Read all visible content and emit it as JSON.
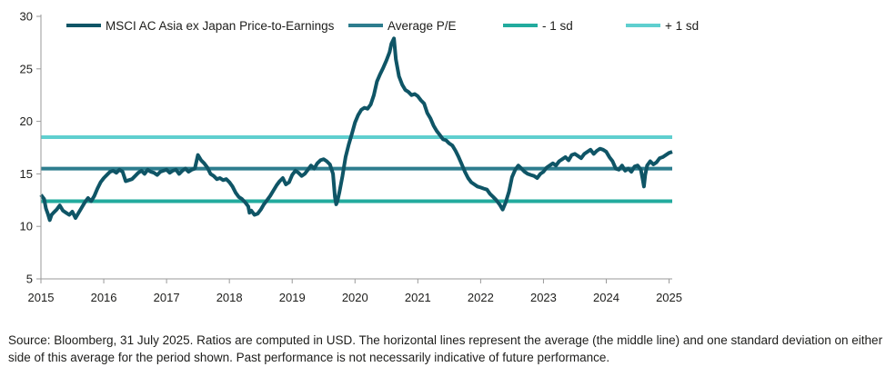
{
  "chart_data": {
    "type": "line",
    "x_ticks": [
      "2015",
      "2016",
      "2017",
      "2018",
      "2019",
      "2020",
      "2021",
      "2022",
      "2023",
      "2024",
      "2025"
    ],
    "y_ticks": [
      "5",
      "10",
      "15",
      "20",
      "25",
      "30"
    ],
    "xlim": [
      2015.0,
      2025.05
    ],
    "ylim": [
      5,
      30
    ],
    "legend_position": "top",
    "grid": false,
    "series": [
      {
        "name": "MSCI AC Asia ex Japan Price-to-Earnings",
        "color": "#0f5566",
        "points": [
          [
            2015.0,
            13.0
          ],
          [
            2015.05,
            12.6
          ],
          [
            2015.08,
            11.7
          ],
          [
            2015.11,
            11.2
          ],
          [
            2015.14,
            10.6
          ],
          [
            2015.17,
            11.1
          ],
          [
            2015.2,
            11.3
          ],
          [
            2015.25,
            11.6
          ],
          [
            2015.3,
            12.0
          ],
          [
            2015.35,
            11.5
          ],
          [
            2015.4,
            11.3
          ],
          [
            2015.45,
            11.1
          ],
          [
            2015.5,
            11.4
          ],
          [
            2015.55,
            10.8
          ],
          [
            2015.6,
            11.3
          ],
          [
            2015.65,
            11.8
          ],
          [
            2015.7,
            12.3
          ],
          [
            2015.75,
            12.7
          ],
          [
            2015.8,
            12.4
          ],
          [
            2015.85,
            12.9
          ],
          [
            2015.9,
            13.6
          ],
          [
            2015.95,
            14.2
          ],
          [
            2016.0,
            14.6
          ],
          [
            2016.05,
            14.9
          ],
          [
            2016.1,
            15.2
          ],
          [
            2016.15,
            15.3
          ],
          [
            2016.2,
            15.1
          ],
          [
            2016.25,
            15.4
          ],
          [
            2016.3,
            15.2
          ],
          [
            2016.35,
            14.3
          ],
          [
            2016.4,
            14.4
          ],
          [
            2016.45,
            14.5
          ],
          [
            2016.5,
            14.8
          ],
          [
            2016.55,
            15.1
          ],
          [
            2016.6,
            15.3
          ],
          [
            2016.65,
            15.0
          ],
          [
            2016.7,
            15.4
          ],
          [
            2016.75,
            15.2
          ],
          [
            2016.8,
            15.1
          ],
          [
            2016.85,
            14.9
          ],
          [
            2016.9,
            15.2
          ],
          [
            2016.95,
            15.3
          ],
          [
            2017.0,
            15.4
          ],
          [
            2017.05,
            15.1
          ],
          [
            2017.1,
            15.3
          ],
          [
            2017.15,
            15.4
          ],
          [
            2017.2,
            15.0
          ],
          [
            2017.25,
            15.3
          ],
          [
            2017.3,
            15.5
          ],
          [
            2017.35,
            15.2
          ],
          [
            2017.4,
            15.4
          ],
          [
            2017.45,
            15.5
          ],
          [
            2017.5,
            16.8
          ],
          [
            2017.55,
            16.3
          ],
          [
            2017.6,
            16.0
          ],
          [
            2017.65,
            15.6
          ],
          [
            2017.7,
            15.0
          ],
          [
            2017.75,
            14.8
          ],
          [
            2017.8,
            14.5
          ],
          [
            2017.85,
            14.6
          ],
          [
            2017.9,
            14.4
          ],
          [
            2017.95,
            14.5
          ],
          [
            2018.0,
            14.2
          ],
          [
            2018.05,
            13.8
          ],
          [
            2018.1,
            13.2
          ],
          [
            2018.15,
            12.8
          ],
          [
            2018.2,
            12.6
          ],
          [
            2018.25,
            12.3
          ],
          [
            2018.3,
            11.9
          ],
          [
            2018.32,
            11.3
          ],
          [
            2018.35,
            11.5
          ],
          [
            2018.4,
            11.1
          ],
          [
            2018.45,
            11.2
          ],
          [
            2018.5,
            11.6
          ],
          [
            2018.55,
            12.1
          ],
          [
            2018.6,
            12.5
          ],
          [
            2018.65,
            12.9
          ],
          [
            2018.7,
            13.4
          ],
          [
            2018.75,
            13.9
          ],
          [
            2018.8,
            14.3
          ],
          [
            2018.85,
            14.6
          ],
          [
            2018.9,
            14.0
          ],
          [
            2018.95,
            14.2
          ],
          [
            2019.0,
            14.9
          ],
          [
            2019.05,
            15.3
          ],
          [
            2019.1,
            15.1
          ],
          [
            2019.15,
            14.8
          ],
          [
            2019.2,
            15.0
          ],
          [
            2019.25,
            15.4
          ],
          [
            2019.3,
            15.8
          ],
          [
            2019.35,
            15.5
          ],
          [
            2019.4,
            16.0
          ],
          [
            2019.45,
            16.3
          ],
          [
            2019.5,
            16.4
          ],
          [
            2019.55,
            16.2
          ],
          [
            2019.6,
            15.9
          ],
          [
            2019.65,
            15.0
          ],
          [
            2019.68,
            12.8
          ],
          [
            2019.7,
            12.1
          ],
          [
            2019.72,
            12.4
          ],
          [
            2019.75,
            13.2
          ],
          [
            2019.8,
            14.8
          ],
          [
            2019.85,
            16.6
          ],
          [
            2019.9,
            17.8
          ],
          [
            2019.95,
            18.8
          ],
          [
            2020.0,
            19.9
          ],
          [
            2020.05,
            20.6
          ],
          [
            2020.1,
            21.1
          ],
          [
            2020.15,
            21.3
          ],
          [
            2020.2,
            21.2
          ],
          [
            2020.25,
            21.6
          ],
          [
            2020.3,
            22.5
          ],
          [
            2020.35,
            23.8
          ],
          [
            2020.4,
            24.5
          ],
          [
            2020.45,
            25.1
          ],
          [
            2020.5,
            25.8
          ],
          [
            2020.55,
            26.6
          ],
          [
            2020.58,
            27.4
          ],
          [
            2020.62,
            27.9
          ],
          [
            2020.65,
            25.9
          ],
          [
            2020.7,
            24.3
          ],
          [
            2020.75,
            23.5
          ],
          [
            2020.8,
            23.0
          ],
          [
            2020.85,
            22.8
          ],
          [
            2020.9,
            22.5
          ],
          [
            2020.95,
            22.6
          ],
          [
            2021.0,
            22.4
          ],
          [
            2021.05,
            22.0
          ],
          [
            2021.1,
            21.7
          ],
          [
            2021.15,
            20.8
          ],
          [
            2021.2,
            20.3
          ],
          [
            2021.25,
            19.6
          ],
          [
            2021.3,
            19.1
          ],
          [
            2021.35,
            18.7
          ],
          [
            2021.4,
            18.3
          ],
          [
            2021.45,
            18.2
          ],
          [
            2021.5,
            17.9
          ],
          [
            2021.55,
            17.7
          ],
          [
            2021.6,
            17.2
          ],
          [
            2021.65,
            16.6
          ],
          [
            2021.7,
            15.9
          ],
          [
            2021.75,
            15.2
          ],
          [
            2021.8,
            14.6
          ],
          [
            2021.85,
            14.2
          ],
          [
            2021.9,
            14.0
          ],
          [
            2021.95,
            13.8
          ],
          [
            2022.0,
            13.7
          ],
          [
            2022.05,
            13.6
          ],
          [
            2022.1,
            13.5
          ],
          [
            2022.15,
            13.1
          ],
          [
            2022.2,
            12.8
          ],
          [
            2022.25,
            12.5
          ],
          [
            2022.3,
            12.1
          ],
          [
            2022.35,
            11.6
          ],
          [
            2022.4,
            12.3
          ],
          [
            2022.45,
            13.3
          ],
          [
            2022.5,
            14.7
          ],
          [
            2022.55,
            15.4
          ],
          [
            2022.6,
            15.8
          ],
          [
            2022.65,
            15.5
          ],
          [
            2022.7,
            15.2
          ],
          [
            2022.75,
            15.0
          ],
          [
            2022.8,
            14.9
          ],
          [
            2022.85,
            14.8
          ],
          [
            2022.9,
            14.6
          ],
          [
            2022.95,
            15.0
          ],
          [
            2023.0,
            15.2
          ],
          [
            2023.05,
            15.6
          ],
          [
            2023.1,
            15.8
          ],
          [
            2023.15,
            16.0
          ],
          [
            2023.2,
            15.8
          ],
          [
            2023.25,
            16.2
          ],
          [
            2023.3,
            16.4
          ],
          [
            2023.35,
            16.6
          ],
          [
            2023.4,
            16.3
          ],
          [
            2023.45,
            16.8
          ],
          [
            2023.5,
            16.9
          ],
          [
            2023.55,
            16.7
          ],
          [
            2023.6,
            16.5
          ],
          [
            2023.65,
            16.9
          ],
          [
            2023.7,
            17.1
          ],
          [
            2023.75,
            17.3
          ],
          [
            2023.8,
            16.9
          ],
          [
            2023.85,
            17.2
          ],
          [
            2023.9,
            17.4
          ],
          [
            2023.95,
            17.3
          ],
          [
            2024.0,
            17.1
          ],
          [
            2024.05,
            16.6
          ],
          [
            2024.1,
            16.2
          ],
          [
            2024.15,
            15.5
          ],
          [
            2024.2,
            15.4
          ],
          [
            2024.25,
            15.8
          ],
          [
            2024.3,
            15.3
          ],
          [
            2024.35,
            15.5
          ],
          [
            2024.4,
            15.2
          ],
          [
            2024.45,
            15.7
          ],
          [
            2024.5,
            15.8
          ],
          [
            2024.55,
            15.4
          ],
          [
            2024.58,
            14.5
          ],
          [
            2024.6,
            13.8
          ],
          [
            2024.62,
            14.9
          ],
          [
            2024.65,
            15.8
          ],
          [
            2024.7,
            16.2
          ],
          [
            2024.75,
            15.9
          ],
          [
            2024.8,
            16.1
          ],
          [
            2024.85,
            16.5
          ],
          [
            2024.9,
            16.6
          ],
          [
            2024.95,
            16.8
          ],
          [
            2025.0,
            17.0
          ],
          [
            2025.05,
            17.1
          ]
        ]
      },
      {
        "name": "Average P/E",
        "color": "#2d7d8e",
        "value": 15.5
      },
      {
        "name": "- 1 sd",
        "color": "#22ab9e",
        "value": 12.4
      },
      {
        "name": "+ 1 sd",
        "color": "#5fcfcf",
        "value": 18.5
      }
    ]
  },
  "source_note": "Source: Bloomberg, 31 July 2025. Ratios are computed in USD. The horizontal lines represent the average (the middle line) and one standard deviation on either side of this average for the period shown. Past performance is not necessarily indicative of future performance."
}
